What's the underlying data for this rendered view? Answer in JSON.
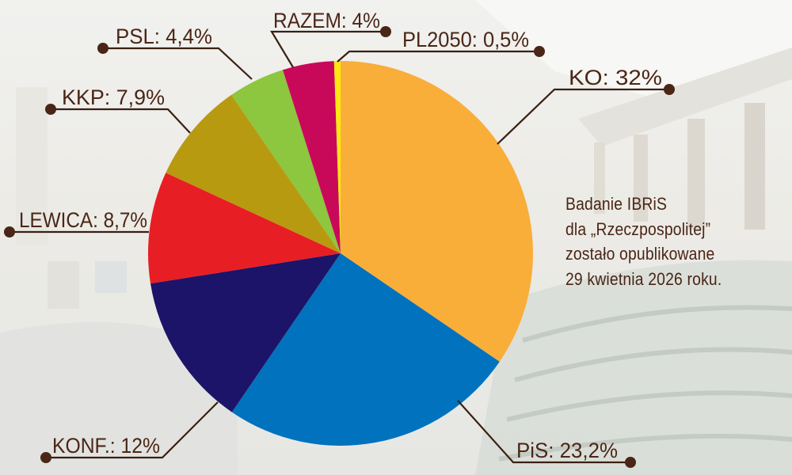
{
  "chart_data": {
    "type": "pie",
    "title": "",
    "start_angle_deg": 0,
    "direction": "clockwise",
    "slices": [
      {
        "label": "KO",
        "value": 32,
        "display": "KO: 32%",
        "color": "#F9AE3A"
      },
      {
        "label": "PiS",
        "value": 23.2,
        "display": "PiS: 23,2%",
        "color": "#0072BE"
      },
      {
        "label": "KONF.",
        "value": 12,
        "display": "KONF.: 12%",
        "color": "#1C1468"
      },
      {
        "label": "LEWICA",
        "value": 8.7,
        "display": "LEWICA: 8,7%",
        "color": "#E81E25"
      },
      {
        "label": "KKP",
        "value": 7.9,
        "display": "KKP: 7,9%",
        "color": "#B89A10"
      },
      {
        "label": "PSL",
        "value": 4.4,
        "display": "PSL: 4,4%",
        "color": "#8DC63F"
      },
      {
        "label": "RAZEM",
        "value": 4,
        "display": "RAZEM: 4%",
        "color": "#C8095A"
      },
      {
        "label": "PL2050",
        "value": 0.5,
        "display": "PL2050: 0,5%",
        "color": "#FFE812"
      }
    ],
    "annotation": [
      "Badanie IBRiS",
      "dla „Rzeczpospolitej”",
      "zostało opublikowane",
      "29 kwietnia 2026 roku."
    ],
    "legend": "none"
  },
  "labels": {
    "ko": "KO: 32%",
    "pis": "PiS: 23,2%",
    "konf": "KONF.: 12%",
    "lewica": "LEWICA: 8,7%",
    "kkp": "KKP: 7,9%",
    "psl": "PSL: 4,4%",
    "razem": "RAZEM: 4%",
    "pl2050": "PL2050: 0,5%"
  },
  "caption": {
    "line1": "Badanie IBRiS",
    "line2": "dla „Rzeczpospolitej”",
    "line3": "zostało opublikowane",
    "line4": "29 kwietnia 2026 roku."
  },
  "colors": {
    "label_text": "#4a2616",
    "leader_line": "#3a1f12",
    "dot": "#4a2616"
  }
}
